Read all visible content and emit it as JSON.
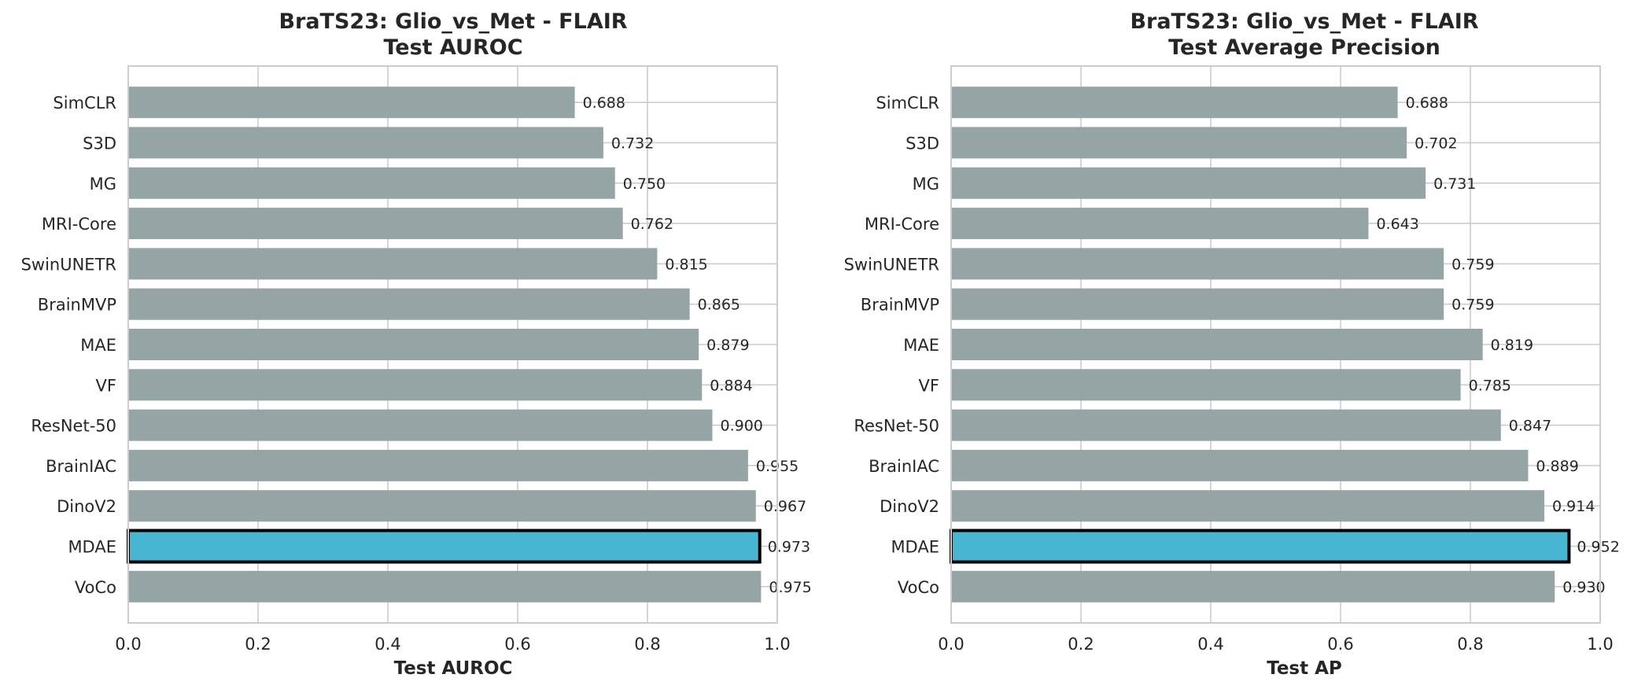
{
  "chart_data": [
    {
      "type": "bar",
      "orientation": "horizontal",
      "title": "BraTS23: Glio_vs_Met - FLAIR",
      "subtitle": "Test AUROC",
      "xlabel": "Test AUROC",
      "xlim": [
        0.0,
        1.0
      ],
      "xticks": [
        "0.0",
        "0.2",
        "0.4",
        "0.6",
        "0.8",
        "1.0"
      ],
      "grid": true,
      "categories": [
        "SimCLR",
        "S3D",
        "MG",
        "MRI-Core",
        "SwinUNETR",
        "BrainMVP",
        "MAE",
        "VF",
        "ResNet-50",
        "BrainIAC",
        "DinoV2",
        "MDAE",
        "VoCo"
      ],
      "values": [
        0.688,
        0.732,
        0.75,
        0.762,
        0.815,
        0.865,
        0.879,
        0.884,
        0.9,
        0.955,
        0.967,
        0.973,
        0.975
      ],
      "value_labels": [
        "0.688",
        "0.732",
        "0.750",
        "0.762",
        "0.815",
        "0.865",
        "0.879",
        "0.884",
        "0.900",
        "0.955",
        "0.967",
        "0.973",
        "0.975"
      ],
      "highlight": "MDAE"
    },
    {
      "type": "bar",
      "orientation": "horizontal",
      "title": "BraTS23: Glio_vs_Met - FLAIR",
      "subtitle": "Test Average Precision",
      "xlabel": "Test AP",
      "xlim": [
        0.0,
        1.0
      ],
      "xticks": [
        "0.0",
        "0.2",
        "0.4",
        "0.6",
        "0.8",
        "1.0"
      ],
      "grid": true,
      "categories": [
        "SimCLR",
        "S3D",
        "MG",
        "MRI-Core",
        "SwinUNETR",
        "BrainMVP",
        "MAE",
        "VF",
        "ResNet-50",
        "BrainIAC",
        "DinoV2",
        "MDAE",
        "VoCo"
      ],
      "values": [
        0.688,
        0.702,
        0.731,
        0.643,
        0.759,
        0.759,
        0.819,
        0.785,
        0.847,
        0.889,
        0.914,
        0.952,
        0.93
      ],
      "value_labels": [
        "0.688",
        "0.702",
        "0.731",
        "0.643",
        "0.759",
        "0.759",
        "0.819",
        "0.785",
        "0.847",
        "0.889",
        "0.914",
        "0.952",
        "0.930"
      ],
      "highlight": "MDAE"
    }
  ],
  "colors": {
    "bar": "#95a5a6",
    "highlight": "#48b6d1",
    "highlight_edge": "#000000"
  }
}
